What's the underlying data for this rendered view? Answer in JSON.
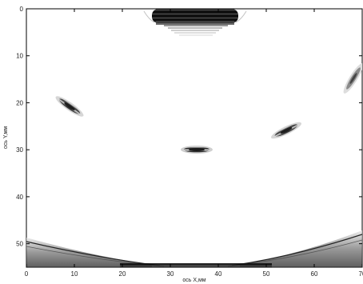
{
  "chart_data": {
    "type": "heatmap",
    "title": "",
    "xlabel": "ось X,мм",
    "ylabel": "ось Y,мм",
    "xlim": [
      0,
      70
    ],
    "ylim": [
      55,
      0
    ],
    "y_axis_inverted": true,
    "x_ticks": [
      "0",
      "10",
      "20",
      "30",
      "40",
      "50",
      "60",
      "70"
    ],
    "y_ticks": [
      "0",
      "10",
      "20",
      "30",
      "40",
      "50"
    ],
    "grid": false,
    "colormap": "grayscale (white = 0, black = max)",
    "features": [
      {
        "name": "top-probe-region",
        "x_range": [
          27,
          43
        ],
        "y_range": [
          0,
          6
        ],
        "intensity": "high"
      },
      {
        "name": "left-reflector",
        "x": 9,
        "y": 21,
        "intensity": "high"
      },
      {
        "name": "center-reflector",
        "x": 35,
        "y": 30,
        "intensity": "high"
      },
      {
        "name": "right-reflector",
        "x": 54,
        "y": 26,
        "intensity": "high"
      },
      {
        "name": "top-right-edge-reflector",
        "x": 69,
        "y": 14,
        "intensity": "medium"
      },
      {
        "name": "bottom-arc-boundary",
        "x_range": [
          0,
          70
        ],
        "y_range": [
          48,
          55
        ],
        "intensity": "medium"
      }
    ]
  }
}
